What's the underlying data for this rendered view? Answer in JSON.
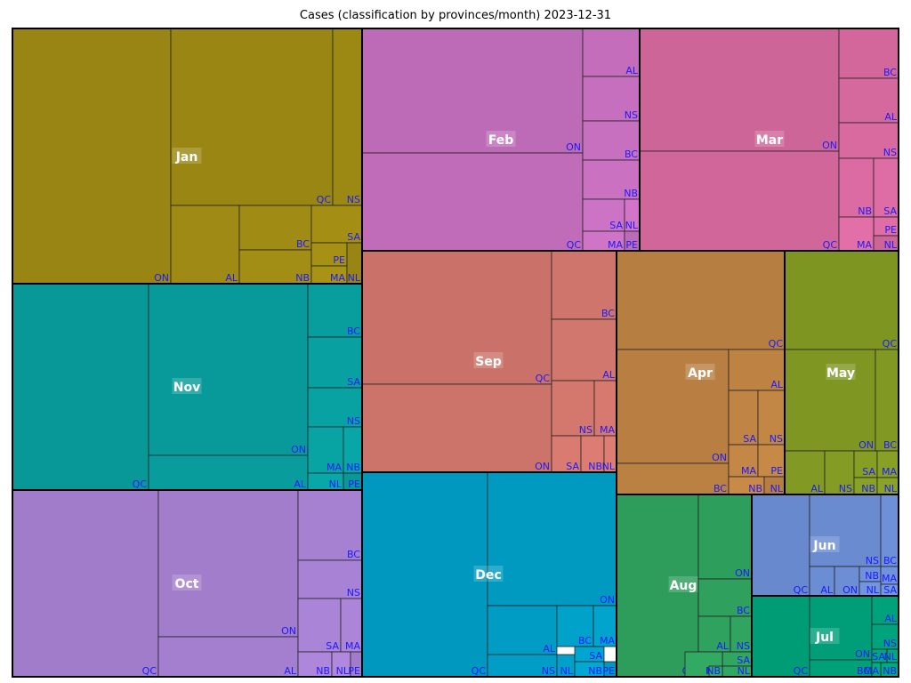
{
  "chart_data": {
    "type": "treemap",
    "title": "Cases (classification by provinces/month)  2023-12-31",
    "groups": [
      {
        "name": "Jan",
        "color": "#a08c14",
        "cells": [
          {
            "label": "ON",
            "value": 1
          },
          {
            "label": "QC",
            "value": 1
          },
          {
            "label": "NS",
            "value": 1
          },
          {
            "label": "AL",
            "value": 1
          },
          {
            "label": "BC",
            "value": 1
          },
          {
            "label": "NB",
            "value": 1
          },
          {
            "label": "SA",
            "value": 1
          },
          {
            "label": "PE",
            "value": 1
          },
          {
            "label": "MA",
            "value": 1
          },
          {
            "label": "NL",
            "value": 1
          }
        ]
      },
      {
        "name": "Feb",
        "color": "#c870c0",
        "cells": [
          {
            "label": "ON",
            "value": 1
          },
          {
            "label": "QC",
            "value": 1
          },
          {
            "label": "AL",
            "value": 1
          },
          {
            "label": "NS",
            "value": 1
          },
          {
            "label": "BC",
            "value": 1
          },
          {
            "label": "NB",
            "value": 1
          },
          {
            "label": "SA",
            "value": 1
          },
          {
            "label": "MA",
            "value": 1
          },
          {
            "label": "NL",
            "value": 1
          },
          {
            "label": "PE",
            "value": 1
          }
        ]
      },
      {
        "name": "Mar",
        "color": "#d86aa0",
        "cells": [
          {
            "label": "ON",
            "value": 1
          },
          {
            "label": "QC",
            "value": 1
          },
          {
            "label": "BC",
            "value": 1
          },
          {
            "label": "AL",
            "value": 1
          },
          {
            "label": "NS",
            "value": 1
          },
          {
            "label": "NB",
            "value": 1
          },
          {
            "label": "SA",
            "value": 1
          },
          {
            "label": "PE",
            "value": 1
          },
          {
            "label": "MA",
            "value": 1
          },
          {
            "label": "NL",
            "value": 1
          }
        ]
      },
      {
        "name": "Nov",
        "color": "#08a0a0",
        "cells": [
          {
            "label": "QC",
            "value": 1
          },
          {
            "label": "ON",
            "value": 1
          },
          {
            "label": "AL",
            "value": 1
          },
          {
            "label": "BC",
            "value": 1
          },
          {
            "label": "SA",
            "value": 1
          },
          {
            "label": "NS",
            "value": 1
          },
          {
            "label": "MA",
            "value": 1
          },
          {
            "label": "NB",
            "value": 1
          },
          {
            "label": "NL",
            "value": 1
          },
          {
            "label": "PE",
            "value": 1
          }
        ]
      },
      {
        "name": "Sep",
        "color": "#d4786e",
        "cells": [
          {
            "label": "QC",
            "value": 1
          },
          {
            "label": "ON",
            "value": 1
          },
          {
            "label": "BC",
            "value": 1
          },
          {
            "label": "AL",
            "value": 1
          },
          {
            "label": "NS",
            "value": 1
          },
          {
            "label": "MA",
            "value": 1
          },
          {
            "label": "SA",
            "value": 1
          },
          {
            "label": "NB",
            "value": 1
          },
          {
            "label": "NL",
            "value": 1
          }
        ]
      },
      {
        "name": "Apr",
        "color": "#c08444",
        "cells": [
          {
            "label": "QC",
            "value": 1
          },
          {
            "label": "ON",
            "value": 1
          },
          {
            "label": "BC",
            "value": 1
          },
          {
            "label": "AL",
            "value": 1
          },
          {
            "label": "SA",
            "value": 1
          },
          {
            "label": "NS",
            "value": 1
          },
          {
            "label": "MA",
            "value": 1
          },
          {
            "label": "PE",
            "value": 1
          },
          {
            "label": "NB",
            "value": 1
          },
          {
            "label": "NL",
            "value": 1
          }
        ]
      },
      {
        "name": "May",
        "color": "#849c24",
        "cells": [
          {
            "label": "QC",
            "value": 1
          },
          {
            "label": "ON",
            "value": 1
          },
          {
            "label": "BC",
            "value": 1
          },
          {
            "label": "AL",
            "value": 1
          },
          {
            "label": "NS",
            "value": 1
          },
          {
            "label": "SA",
            "value": 1
          },
          {
            "label": "MA",
            "value": 1
          },
          {
            "label": "NB",
            "value": 1
          },
          {
            "label": "NL",
            "value": 1
          }
        ]
      },
      {
        "name": "Oct",
        "color": "#a882d4",
        "cells": [
          {
            "label": "QC",
            "value": 1
          },
          {
            "label": "ON",
            "value": 1
          },
          {
            "label": "AL",
            "value": 1
          },
          {
            "label": "BC",
            "value": 1
          },
          {
            "label": "NS",
            "value": 1
          },
          {
            "label": "SA",
            "value": 1
          },
          {
            "label": "MA",
            "value": 1
          },
          {
            "label": "NB",
            "value": 1
          },
          {
            "label": "NL",
            "value": 1
          },
          {
            "label": "PE",
            "value": 1
          }
        ]
      },
      {
        "name": "Dec",
        "color": "#00a0c8",
        "cells": [
          {
            "label": "QC",
            "value": 1
          },
          {
            "label": "ON",
            "value": 1
          },
          {
            "label": "AL",
            "value": 1
          },
          {
            "label": "NS",
            "value": 1
          },
          {
            "label": "NL",
            "value": 1
          },
          {
            "label": "BC",
            "value": 1
          },
          {
            "label": "MA",
            "value": 1
          },
          {
            "label": "SA",
            "value": 1
          },
          {
            "label": "NB",
            "value": 1
          },
          {
            "label": "PE",
            "value": 1
          }
        ]
      },
      {
        "name": "Aug",
        "color": "#30a460",
        "cells": [
          {
            "label": "QC",
            "value": 1
          },
          {
            "label": "ON",
            "value": 1
          },
          {
            "label": "BC",
            "value": 1
          },
          {
            "label": "AL",
            "value": 1
          },
          {
            "label": "NS",
            "value": 1
          },
          {
            "label": "SA",
            "value": 1
          },
          {
            "label": "NL",
            "value": 1
          },
          {
            "label": "MA",
            "value": 1
          },
          {
            "label": "NB",
            "value": 1
          }
        ]
      },
      {
        "name": "Jun",
        "color": "#6e90d8",
        "cells": [
          {
            "label": "QC",
            "value": 1
          },
          {
            "label": "NS",
            "value": 1
          },
          {
            "label": "AL",
            "value": 1
          },
          {
            "label": "ON",
            "value": 1
          },
          {
            "label": "BC",
            "value": 1
          },
          {
            "label": "NB",
            "value": 1
          },
          {
            "label": "MA",
            "value": 1
          },
          {
            "label": "NL",
            "value": 1
          },
          {
            "label": "SA",
            "value": 1
          }
        ]
      },
      {
        "name": "Jul",
        "color": "#00a47c",
        "cells": [
          {
            "label": "QC",
            "value": 1
          },
          {
            "label": "ON",
            "value": 1
          },
          {
            "label": "BC",
            "value": 1
          },
          {
            "label": "AL",
            "value": 1
          },
          {
            "label": "NS",
            "value": 1
          },
          {
            "label": "SA",
            "value": 1
          },
          {
            "label": "NL",
            "value": 1
          },
          {
            "label": "NB",
            "value": 1
          },
          {
            "label": "MA",
            "value": 1
          }
        ]
      }
    ]
  }
}
